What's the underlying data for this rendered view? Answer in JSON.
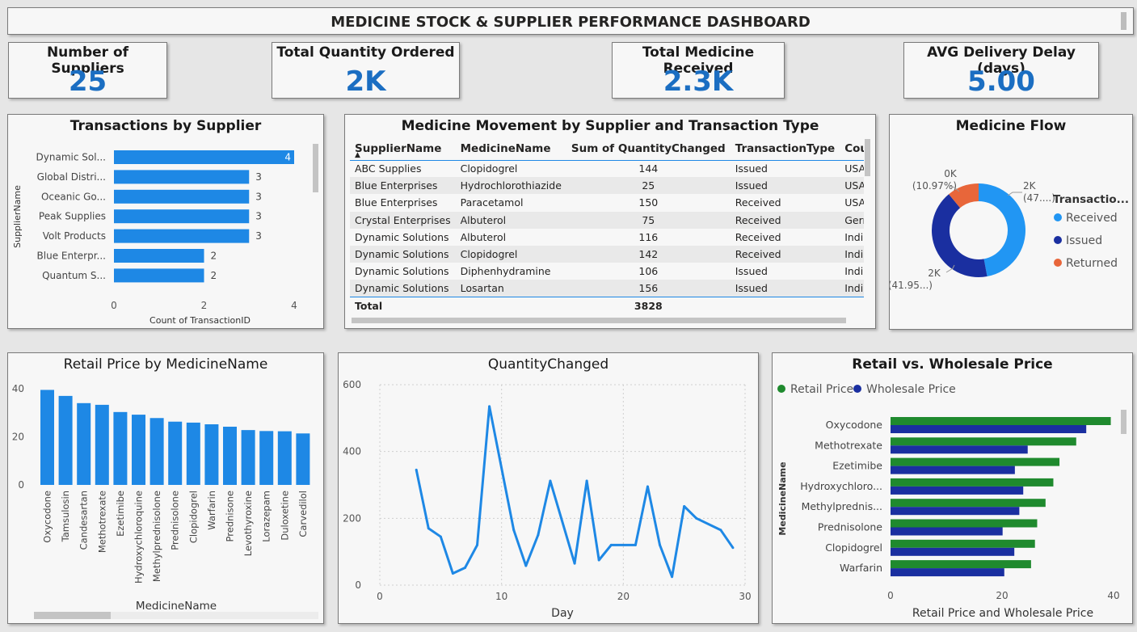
{
  "dashboard": {
    "title": "MEDICINE STOCK & SUPPLIER PERFORMANCE DASHBOARD"
  },
  "kpis": [
    {
      "label": "Number of Suppliers",
      "value": "25"
    },
    {
      "label": "Total Quantity Ordered",
      "value": "2K"
    },
    {
      "label": "Total Medicine Received",
      "value": "2.3K"
    },
    {
      "label": "AVG Delivery Delay (days)",
      "value": "5.00"
    }
  ],
  "colors": {
    "accent": "#1e88e5",
    "kpi_value": "#1b6ec2",
    "received": "#2196f3",
    "issued": "#1a2fa0",
    "returned": "#e8663a",
    "retail": "#1f8a2e",
    "wholesale": "#1a2fa0"
  },
  "table": {
    "title": "Medicine Movement by Supplier and Transaction Type",
    "columns": [
      "SupplierName",
      "MedicineName",
      "Sum of QuantityChanged",
      "TransactionType",
      "Country"
    ],
    "rows": [
      [
        "ABC Supplies",
        "Clopidogrel",
        "144",
        "Issued",
        "USA"
      ],
      [
        "Blue Enterprises",
        "Hydrochlorothiazide",
        "25",
        "Issued",
        "USA"
      ],
      [
        "Blue Enterprises",
        "Paracetamol",
        "150",
        "Received",
        "USA"
      ],
      [
        "Crystal Enterprises",
        "Albuterol",
        "75",
        "Received",
        "Germany"
      ],
      [
        "Dynamic Solutions",
        "Albuterol",
        "116",
        "Received",
        "India"
      ],
      [
        "Dynamic Solutions",
        "Clopidogrel",
        "142",
        "Received",
        "India"
      ],
      [
        "Dynamic Solutions",
        "Diphenhydramine",
        "106",
        "Issued",
        "India"
      ],
      [
        "Dynamic Solutions",
        "Losartan",
        "156",
        "Issued",
        "India"
      ]
    ],
    "total_label": "Total",
    "total_value": "3828"
  },
  "chart_data": [
    {
      "id": "transactions_by_supplier",
      "type": "bar",
      "orientation": "horizontal",
      "title": "Transactions by Supplier",
      "xlabel": "Count of TransactionID",
      "ylabel": "SupplierName",
      "categories": [
        "Dynamic Sol...",
        "Global Distri...",
        "Oceanic Go...",
        "Peak Supplies",
        "Volt Products",
        "Blue Enterpr...",
        "Quantum S..."
      ],
      "values": [
        4,
        3,
        3,
        3,
        3,
        2,
        2
      ],
      "xlim": [
        0,
        4
      ],
      "xticks": [
        "0",
        "2",
        "4"
      ]
    },
    {
      "id": "medicine_flow",
      "type": "pie",
      "donut": true,
      "title": "Medicine Flow",
      "legend_title": "Transactio...",
      "labels": [
        "Received",
        "Issued",
        "Returned"
      ],
      "values": [
        47.08,
        41.95,
        10.97
      ],
      "slice_labels": [
        [
          "2K",
          "(47....)"
        ],
        [
          "2K",
          "(41.95...)"
        ],
        [
          "0K",
          "(10.97%)"
        ]
      ]
    },
    {
      "id": "retail_price_by_medicine",
      "type": "bar",
      "title": "Retail Price by MedicineName",
      "xlabel": "MedicineName",
      "ylabel": "",
      "categories": [
        "Oxycodone",
        "Tamsulosin",
        "Candesartan",
        "Methotrexate",
        "Ezetimibe",
        "Hydroxychloroquine",
        "Methylprednisolone",
        "Prednisolone",
        "Clopidogrel",
        "Warfarin",
        "Prednisone",
        "Levothyroxine",
        "Lorazepam",
        "Duloxetine",
        "Carvedilol"
      ],
      "values": [
        39.5,
        37,
        34,
        33.3,
        30.3,
        29.2,
        27.8,
        26.3,
        25.9,
        25.2,
        24.2,
        22.8,
        22.4,
        22.3,
        21.4
      ],
      "ylim": [
        0,
        42
      ],
      "yticks": [
        "0",
        "20",
        "40"
      ]
    },
    {
      "id": "quantity_changed",
      "type": "line",
      "title": "QuantityChanged",
      "xlabel": "Day",
      "ylabel": "",
      "x": [
        3,
        4,
        5,
        6,
        7,
        8,
        9,
        11,
        12,
        13,
        14,
        16,
        17,
        18,
        19,
        21,
        22,
        23,
        24,
        25,
        26,
        28,
        29
      ],
      "y": [
        345,
        170,
        145,
        35,
        52,
        120,
        535,
        165,
        58,
        150,
        312,
        65,
        312,
        75,
        120,
        120,
        295,
        120,
        25,
        236,
        200,
        165,
        112
      ],
      "xlim": [
        0,
        30
      ],
      "ylim": [
        0,
        600
      ],
      "xticks": [
        "0",
        "10",
        "20",
        "30"
      ],
      "yticks": [
        "0",
        "200",
        "400",
        "600"
      ]
    },
    {
      "id": "retail_vs_wholesale",
      "type": "bar",
      "orientation": "horizontal",
      "title": "Retail vs. Wholesale Price",
      "xlabel": "Retail Price and Wholesale Price",
      "ylabel": "MedicineName",
      "categories": [
        "Oxycodone",
        "Methotrexate",
        "Ezetimibe",
        "Hydroxychloro...",
        "Methylprednis...",
        "Prednisolone",
        "Clopidogrel",
        "Warfarin"
      ],
      "series": [
        {
          "name": "Retail Price",
          "values": [
            39.5,
            33.3,
            30.3,
            29.2,
            27.8,
            26.3,
            25.9,
            25.2
          ]
        },
        {
          "name": "Wholesale Price",
          "values": [
            35.1,
            24.6,
            22.3,
            23.8,
            23.1,
            20.1,
            22.2,
            20.4
          ]
        }
      ],
      "xlim": [
        0,
        40
      ],
      "xticks": [
        "0",
        "20",
        "40"
      ]
    }
  ]
}
